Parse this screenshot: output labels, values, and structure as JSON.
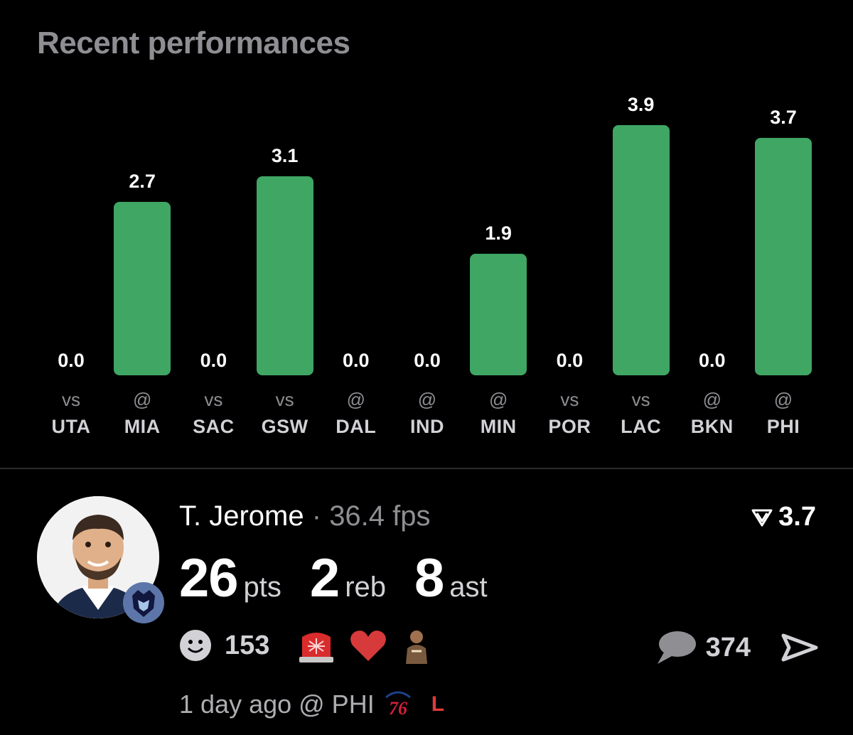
{
  "header": {
    "title": "Recent performances"
  },
  "colors": {
    "bar": "#3fa664",
    "background": "#000000",
    "muted": "#8e8e93",
    "loss": "#e03a3a"
  },
  "chart_data": {
    "type": "bar",
    "title": "Recent performances",
    "categories": [
      "vs UTA",
      "@ MIA",
      "vs SAC",
      "vs GSW",
      "@ DAL",
      "@ IND",
      "@ MIN",
      "vs POR",
      "vs LAC",
      "@ BKN",
      "@ PHI"
    ],
    "prefixes": [
      "vs",
      "@",
      "vs",
      "vs",
      "@",
      "@",
      "@",
      "vs",
      "vs",
      "@",
      "@"
    ],
    "teams": [
      "UTA",
      "MIA",
      "SAC",
      "GSW",
      "DAL",
      "IND",
      "MIN",
      "POR",
      "LAC",
      "BKN",
      "PHI"
    ],
    "values": [
      0.0,
      2.7,
      0.0,
      3.1,
      0.0,
      0.0,
      1.9,
      0.0,
      3.9,
      0.0,
      3.7
    ],
    "value_labels": [
      "0.0",
      "2.7",
      "0.0",
      "3.1",
      "0.0",
      "0.0",
      "1.9",
      "0.0",
      "3.9",
      "0.0",
      "3.7"
    ],
    "ylim": [
      0,
      3.9
    ]
  },
  "player": {
    "name": "T. Jerome",
    "separator": "·",
    "fps": "36.4 fps",
    "score": "3.7",
    "score_icon": "fantasy-logo-icon",
    "avatar_icon": "player-headshot",
    "team_icon": "grizzlies-logo-icon",
    "stats": [
      {
        "value": "26",
        "label": "pts"
      },
      {
        "value": "2",
        "label": "reb"
      },
      {
        "value": "8",
        "label": "ast"
      }
    ]
  },
  "reactions": {
    "smile_count": "153",
    "icons": [
      "smile-icon",
      "siren-icon",
      "heart-icon",
      "player-reaction-icon"
    ],
    "comment_count": "374"
  },
  "footer": {
    "time": "1 day ago @ PHI",
    "opponent_logo": "76",
    "result": "L"
  }
}
